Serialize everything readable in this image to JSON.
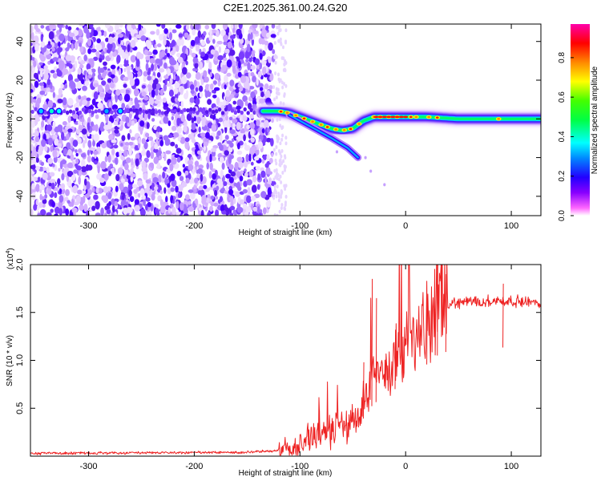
{
  "title": "C2E1.2025.361.00.24.G20",
  "chart_data": [
    {
      "type": "heatmap",
      "name": "spectrogram",
      "xlabel": "Height of straight line (km)",
      "ylabel": "Frequency (Hz)",
      "xlim": [
        -355,
        128
      ],
      "ylim": [
        -50,
        49
      ],
      "xticks": [
        -300,
        -200,
        -100,
        0,
        100
      ],
      "yticks": [
        -40,
        -20,
        0,
        20,
        40
      ],
      "colorbar": {
        "label": "Normalized spectral amplitude",
        "range": [
          0.0,
          0.97
        ],
        "ticks": [
          0.0,
          0.2,
          0.4,
          0.6,
          0.8
        ],
        "tick_labels": [
          "0.0",
          "0.2",
          "0.4",
          "0.6",
          "0.8"
        ],
        "colormap": [
          "#ffffff",
          "#ff44ff",
          "#4400ff",
          "#00ffff",
          "#00ff00",
          "#ffff00",
          "#ff0000",
          "#ff00ff"
        ]
      },
      "noise_region_x": [
        -355,
        -125
      ],
      "main_signal": [
        {
          "x": -350,
          "y": 4
        },
        {
          "x": -300,
          "y": 4
        },
        {
          "x": -250,
          "y": 4
        },
        {
          "x": -200,
          "y": 4
        },
        {
          "x": -150,
          "y": 4
        },
        {
          "x": -130,
          "y": 4
        },
        {
          "x": -120,
          "y": 4
        },
        {
          "x": -110,
          "y": 3
        },
        {
          "x": -100,
          "y": 1
        },
        {
          "x": -90,
          "y": -1
        },
        {
          "x": -80,
          "y": -3
        },
        {
          "x": -70,
          "y": -5
        },
        {
          "x": -60,
          "y": -6
        },
        {
          "x": -50,
          "y": -5
        },
        {
          "x": -45,
          "y": -3
        },
        {
          "x": -40,
          "y": -1
        },
        {
          "x": -30,
          "y": 1
        },
        {
          "x": -20,
          "y": 1
        },
        {
          "x": 0,
          "y": 1
        },
        {
          "x": 20,
          "y": 1
        },
        {
          "x": 50,
          "y": 0
        },
        {
          "x": 80,
          "y": 0
        },
        {
          "x": 100,
          "y": 0
        },
        {
          "x": 128,
          "y": 0
        }
      ],
      "secondary_branch": [
        {
          "x": -110,
          "y": 2
        },
        {
          "x": -90,
          "y": -4
        },
        {
          "x": -70,
          "y": -10
        },
        {
          "x": -55,
          "y": -15
        },
        {
          "x": -45,
          "y": -20
        }
      ]
    },
    {
      "type": "line",
      "name": "snr",
      "xlabel": "Height of straight line (km)",
      "ylabel": "SNR (10 * v/v)",
      "scale_label": "(x10",
      "scale_exp": "4",
      "scale_close": ")",
      "xlim": [
        -355,
        128
      ],
      "ylim": [
        0,
        2.0
      ],
      "xticks": [
        -300,
        -200,
        -100,
        0,
        100
      ],
      "yticks": [
        0.5,
        1.0,
        1.5,
        2.0
      ],
      "ytick_labels": [
        "0.5",
        "1.0",
        "1.5",
        "2.0"
      ],
      "color": "#ee2222",
      "envelope": [
        {
          "x": -355,
          "y": 0.03
        },
        {
          "x": -150,
          "y": 0.04
        },
        {
          "x": -130,
          "y": 0.05
        },
        {
          "x": -110,
          "y": 0.08
        },
        {
          "x": -100,
          "y": 0.12
        },
        {
          "x": -90,
          "y": 0.2
        },
        {
          "x": -80,
          "y": 0.25
        },
        {
          "x": -60,
          "y": 0.3
        },
        {
          "x": -45,
          "y": 0.42
        },
        {
          "x": -35,
          "y": 0.7
        },
        {
          "x": -25,
          "y": 0.85
        },
        {
          "x": -10,
          "y": 1.0
        },
        {
          "x": 0,
          "y": 1.15
        },
        {
          "x": 15,
          "y": 1.3
        },
        {
          "x": 30,
          "y": 1.5
        },
        {
          "x": 45,
          "y": 1.6
        },
        {
          "x": 70,
          "y": 1.62
        },
        {
          "x": 100,
          "y": 1.62
        },
        {
          "x": 128,
          "y": 1.6
        }
      ],
      "spikes": [
        {
          "x": -82,
          "y": 0.48
        },
        {
          "x": -40,
          "y": 0.98
        },
        {
          "x": -32,
          "y": 1.85
        },
        {
          "x": -28,
          "y": 1.65
        },
        {
          "x": -10,
          "y": 1.32
        },
        {
          "x": 20,
          "y": 1.6
        },
        {
          "x": 30,
          "y": 2.0
        },
        {
          "x": 38,
          "y": 1.9
        },
        {
          "x": 92,
          "y": 1.8
        }
      ]
    }
  ]
}
